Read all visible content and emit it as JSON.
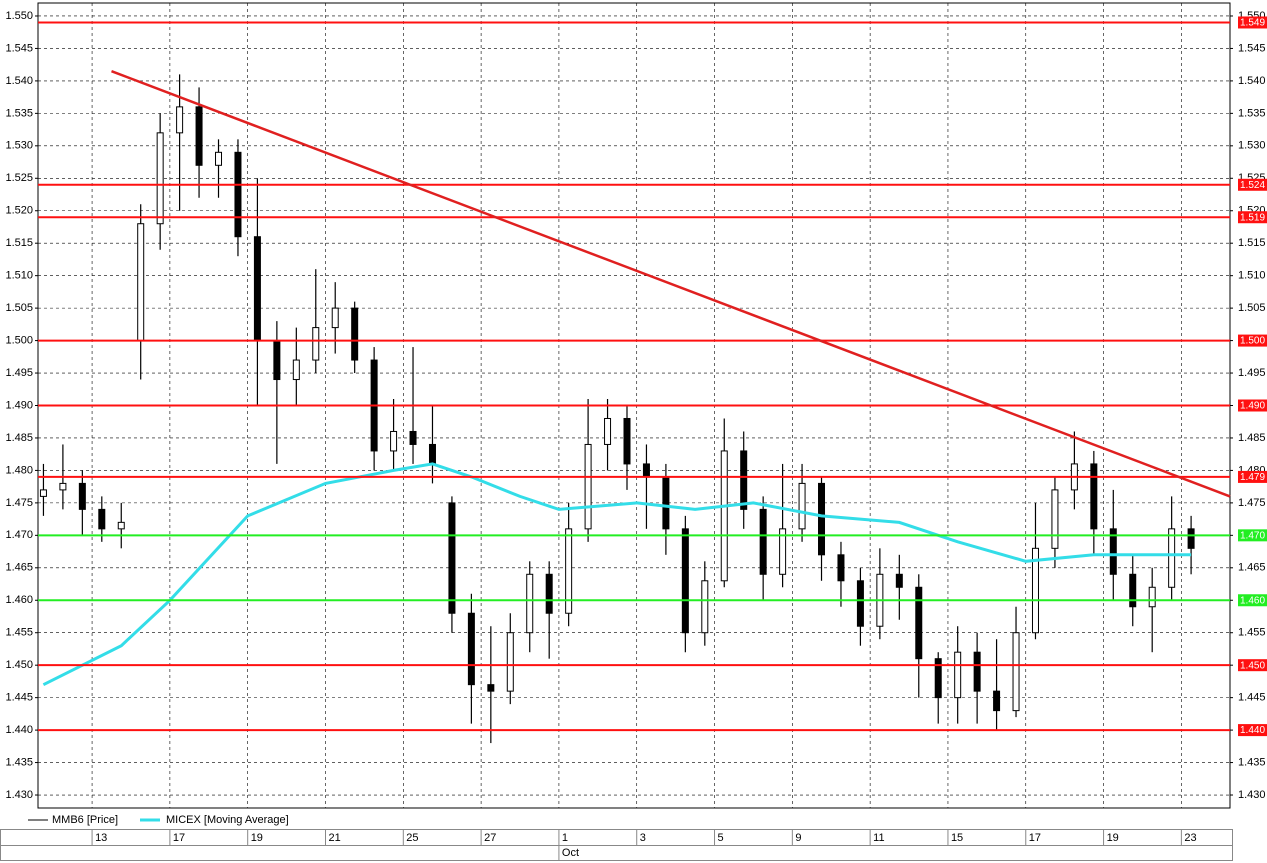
{
  "chart_data": {
    "type": "candlestick",
    "xlim": [
      -2.78,
      58.5
    ],
    "xticks": [
      {
        "value": 0,
        "label": "13"
      },
      {
        "value": 4,
        "label": "17"
      },
      {
        "value": 8,
        "label": "19"
      },
      {
        "value": 12,
        "label": "21"
      },
      {
        "value": 16,
        "label": "25"
      },
      {
        "value": 20,
        "label": "27"
      },
      {
        "value": 24,
        "label": "1"
      },
      {
        "value": 28,
        "label": "3"
      },
      {
        "value": 32,
        "label": "5"
      },
      {
        "value": 36,
        "label": "9"
      },
      {
        "value": 40,
        "label": "11"
      },
      {
        "value": 44,
        "label": "15"
      },
      {
        "value": 48,
        "label": "17"
      },
      {
        "value": 52,
        "label": "19"
      },
      {
        "value": 56,
        "label": "23"
      }
    ],
    "month_labels": [
      {
        "value": 24,
        "label": "Oct"
      }
    ],
    "ylim": [
      1.428,
      1.552
    ],
    "yticks": [
      {
        "value": 1.43,
        "label": "1.430"
      },
      {
        "value": 1.435,
        "label": "1.435"
      },
      {
        "value": 1.44,
        "label": "1.440"
      },
      {
        "value": 1.445,
        "label": "1.445"
      },
      {
        "value": 1.45,
        "label": "1.450"
      },
      {
        "value": 1.455,
        "label": "1.455"
      },
      {
        "value": 1.46,
        "label": "1.460"
      },
      {
        "value": 1.465,
        "label": "1.465"
      },
      {
        "value": 1.47,
        "label": "1.470"
      },
      {
        "value": 1.475,
        "label": "1.475"
      },
      {
        "value": 1.48,
        "label": "1.480"
      },
      {
        "value": 1.485,
        "label": "1.485"
      },
      {
        "value": 1.49,
        "label": "1.490"
      },
      {
        "value": 1.495,
        "label": "1.495"
      },
      {
        "value": 1.5,
        "label": "1.500"
      },
      {
        "value": 1.505,
        "label": "1.505"
      },
      {
        "value": 1.51,
        "label": "1.510"
      },
      {
        "value": 1.515,
        "label": "1.515"
      },
      {
        "value": 1.52,
        "label": "1.520"
      },
      {
        "value": 1.525,
        "label": "1.525"
      },
      {
        "value": 1.53,
        "label": "1.530"
      },
      {
        "value": 1.535,
        "label": "1.535"
      },
      {
        "value": 1.54,
        "label": "1.540"
      },
      {
        "value": 1.545,
        "label": "1.545"
      },
      {
        "value": 1.55,
        "label": "1.550"
      }
    ],
    "grid": true,
    "x": [
      -2.5,
      -1.5,
      -0.5,
      0.5,
      1.5,
      2.5,
      3.5,
      4.5,
      5.5,
      6.5,
      7.5,
      8.5,
      9.5,
      10.5,
      11.5,
      12.5,
      13.5,
      14.5,
      15.5,
      16.5,
      17.5,
      18.5,
      19.5,
      20.5,
      21.5,
      22.5,
      23.5,
      24.5,
      25.5,
      26.5,
      27.5,
      28.5,
      29.5,
      30.5,
      31.5,
      32.5,
      33.5,
      34.5,
      35.5,
      36.5,
      37.5,
      38.5,
      39.5,
      40.5,
      41.5,
      42.5,
      43.5,
      44.5,
      45.5,
      46.5,
      47.5,
      48.5,
      49.5,
      50.5,
      51.5,
      52.5,
      53.5,
      54.5,
      55.5,
      56.5
    ],
    "series": [
      {
        "name": "MMB6 [Price]",
        "color": "#000000",
        "open": [
          1.476,
          1.477,
          1.478,
          1.474,
          1.471,
          1.5,
          1.518,
          1.532,
          1.536,
          1.527,
          1.529,
          1.516,
          1.5,
          1.494,
          1.497,
          1.502,
          1.505,
          1.497,
          1.483,
          1.486,
          1.484,
          1.475,
          1.458,
          1.447,
          1.446,
          1.455,
          1.464,
          1.458,
          1.471,
          1.484,
          1.488,
          1.481,
          1.479,
          1.471,
          1.455,
          1.463,
          1.483,
          1.474,
          1.464,
          1.471,
          1.478,
          1.467,
          1.463,
          1.456,
          1.464,
          1.462,
          1.451,
          1.445,
          1.452,
          1.446,
          1.443,
          1.455,
          1.468,
          1.477,
          1.481,
          1.471,
          1.464,
          1.459,
          1.462,
          1.471
        ],
        "high": [
          1.481,
          1.484,
          1.48,
          1.476,
          1.475,
          1.521,
          1.535,
          1.541,
          1.539,
          1.531,
          1.531,
          1.525,
          1.503,
          1.502,
          1.511,
          1.509,
          1.506,
          1.499,
          1.491,
          1.499,
          1.49,
          1.476,
          1.461,
          1.456,
          1.458,
          1.466,
          1.466,
          1.475,
          1.491,
          1.491,
          1.49,
          1.484,
          1.481,
          1.473,
          1.466,
          1.488,
          1.486,
          1.476,
          1.481,
          1.481,
          1.479,
          1.469,
          1.465,
          1.468,
          1.467,
          1.464,
          1.452,
          1.456,
          1.455,
          1.454,
          1.459,
          1.475,
          1.479,
          1.486,
          1.483,
          1.477,
          1.467,
          1.465,
          1.476,
          1.473
        ],
        "low": [
          1.473,
          1.474,
          1.47,
          1.469,
          1.468,
          1.494,
          1.514,
          1.52,
          1.522,
          1.522,
          1.513,
          1.49,
          1.481,
          1.49,
          1.495,
          1.498,
          1.495,
          1.48,
          1.48,
          1.481,
          1.478,
          1.455,
          1.441,
          1.438,
          1.444,
          1.452,
          1.451,
          1.456,
          1.469,
          1.48,
          1.477,
          1.471,
          1.467,
          1.452,
          1.453,
          1.462,
          1.471,
          1.46,
          1.462,
          1.469,
          1.463,
          1.459,
          1.453,
          1.454,
          1.457,
          1.445,
          1.441,
          1.441,
          1.441,
          1.44,
          1.442,
          1.454,
          1.465,
          1.474,
          1.467,
          1.46,
          1.456,
          1.452,
          1.46,
          1.464
        ],
        "close": [
          1.477,
          1.478,
          1.474,
          1.471,
          1.472,
          1.518,
          1.532,
          1.536,
          1.527,
          1.529,
          1.516,
          1.5,
          1.494,
          1.497,
          1.502,
          1.505,
          1.497,
          1.483,
          1.486,
          1.484,
          1.481,
          1.458,
          1.447,
          1.446,
          1.455,
          1.464,
          1.458,
          1.471,
          1.484,
          1.488,
          1.481,
          1.479,
          1.471,
          1.455,
          1.463,
          1.483,
          1.474,
          1.464,
          1.471,
          1.478,
          1.467,
          1.463,
          1.456,
          1.464,
          1.462,
          1.451,
          1.445,
          1.452,
          1.446,
          1.443,
          1.455,
          1.468,
          1.477,
          1.481,
          1.471,
          1.464,
          1.459,
          1.462,
          1.471,
          1.468
        ]
      },
      {
        "name": "MICEX [Moving Average]",
        "color": "#33dde8",
        "x": [
          -2.5,
          1.5,
          4,
          8,
          12,
          15.5,
          17.5,
          19.5,
          22,
          24,
          28,
          31,
          34,
          37.5,
          41.5,
          44.5,
          48,
          51.5,
          54.5,
          56.5
        ],
        "values": [
          1.447,
          1.453,
          1.46,
          1.473,
          1.478,
          1.48,
          1.481,
          1.479,
          1.476,
          1.474,
          1.475,
          1.474,
          1.475,
          1.473,
          1.472,
          1.469,
          1.466,
          1.467,
          1.467,
          1.467
        ]
      }
    ],
    "trendline": {
      "color": "#e02020",
      "x": [
        1,
        58.5
      ],
      "values": [
        1.5415,
        1.476
      ]
    },
    "levels": [
      {
        "value": 1.549,
        "label": "1.549",
        "color": "#ff1010"
      },
      {
        "value": 1.524,
        "label": "1.524",
        "color": "#ff1010"
      },
      {
        "value": 1.519,
        "label": "1.519",
        "color": "#ff1010"
      },
      {
        "value": 1.5,
        "label": "1.500",
        "color": "#ff1010"
      },
      {
        "value": 1.49,
        "label": "1.490",
        "color": "#ff1010"
      },
      {
        "value": 1.479,
        "label": "1.479",
        "color": "#ff1010"
      },
      {
        "value": 1.47,
        "label": "1.470",
        "color": "#22ee22"
      },
      {
        "value": 1.46,
        "label": "1.460",
        "color": "#22ee22"
      },
      {
        "value": 1.45,
        "label": "1.450",
        "color": "#ff1010"
      },
      {
        "value": 1.44,
        "label": "1.440",
        "color": "#ff1010"
      }
    ]
  }
}
